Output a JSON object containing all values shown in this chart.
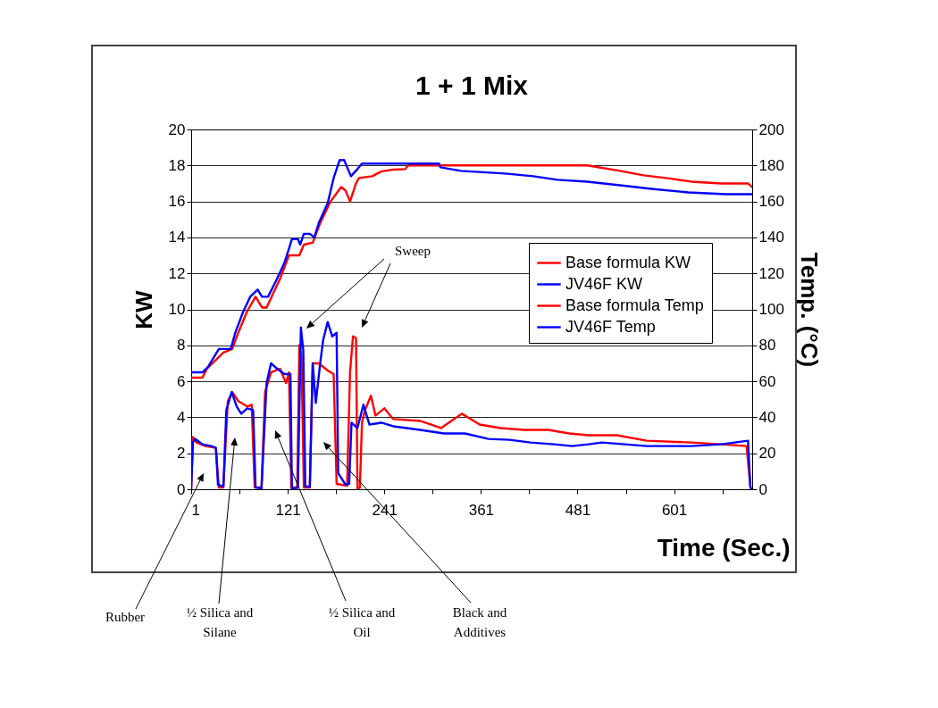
{
  "chart_data": {
    "type": "line",
    "title": "1 + 1 Mix",
    "xlabel": "Time (Sec.)",
    "ylabel": "KW",
    "y2label": "Temp. (°C)",
    "xlim": [
      1,
      698
    ],
    "xticks": [
      1,
      {
        "value": 61,
        "label": null
      },
      121,
      {
        "value": 181,
        "label": null
      },
      241,
      {
        "value": 301,
        "label": null
      },
      361,
      {
        "value": 421,
        "label": null
      },
      481,
      {
        "value": 541,
        "label": null
      },
      601,
      {
        "value": 661,
        "label": null
      }
    ],
    "ylim": [
      0,
      20
    ],
    "yticks": [
      0,
      2,
      4,
      6,
      8,
      10,
      12,
      14,
      16,
      18,
      20
    ],
    "y2lim": [
      0,
      200
    ],
    "y2ticks": [
      0,
      20,
      40,
      60,
      80,
      100,
      120,
      140,
      160,
      180,
      200
    ],
    "grid": "y",
    "legend": "top right",
    "series": [
      {
        "name": "Base formula KW",
        "color": "#ff0000",
        "x": [
          1,
          3.2,
          7.6,
          18.8,
          31.7,
          35.4,
          41,
          46.5,
          52,
          59.5,
          70.6,
          76.2,
          79.9,
          88.4,
          92.8,
          100.2,
          111.4,
          118.8,
          122.5,
          125.4,
          132.8,
          135.4,
          138,
          141,
          148.4,
          152,
          159.5,
          170.6,
          178,
          181.7,
          194.7,
          198.4,
          202,
          205.8,
          207.6,
          210.6,
          213.2,
          217,
          224.3,
          230,
          241,
          252,
          285.5,
          311.4,
          337.3,
          359.5,
          385.5,
          415,
          444.7,
          470.6,
          494.7,
          530,
          567,
          622.4,
          659.5,
          691,
          695.8,
          697.6
        ],
        "values": [
          0,
          2.9,
          2.6,
          2.4,
          2.3,
          0.1,
          0.1,
          4.9,
          5.4,
          4.9,
          4.6,
          4.7,
          0.1,
          0.1,
          5.4,
          6.5,
          6.7,
          5.9,
          6.5,
          0.1,
          0.1,
          8.0,
          7.4,
          0.1,
          0.1,
          7.0,
          7.0,
          6.6,
          6.4,
          0.3,
          0.2,
          6.5,
          8.5,
          8.4,
          0,
          0.1,
          3.7,
          4.4,
          5.2,
          4.1,
          4.5,
          3.9,
          3.8,
          3.4,
          4.2,
          3.6,
          3.4,
          3.3,
          3.3,
          3.1,
          3.0,
          3.0,
          2.7,
          2.6,
          2.5,
          2.4,
          0.1,
          0
        ]
      },
      {
        "name": "JV46F KW",
        "color": "#0000ff",
        "x": [
          1,
          3.2,
          5.8,
          15,
          26.2,
          31.7,
          34.3,
          41,
          44.7,
          51.3,
          57.6,
          63.2,
          70.6,
          78,
          81,
          88.4,
          94.7,
          100.2,
          107.7,
          117,
          124.3,
          126.2,
          133.6,
          137.3,
          140.3,
          142.8,
          148.4,
          152,
          155.8,
          161.3,
          165,
          170.6,
          176.2,
          181.7,
          183.6,
          192.8,
          197.3,
          200.2,
          207.6,
          215,
          222.4,
          237.3,
          252,
          285.5,
          315,
          341,
          370.6,
          396.6,
          422.5,
          452,
          474.3,
          494.7,
          511.3,
          567,
          622.4,
          659.5,
          692.8,
          695.8,
          697.6
        ],
        "values": [
          0,
          2.6,
          2.8,
          2.5,
          2.4,
          2.3,
          0.25,
          0.15,
          4.4,
          5.4,
          4.6,
          4.2,
          4.5,
          4.4,
          0.1,
          0.05,
          5.9,
          7.0,
          6.7,
          6.4,
          6.4,
          0,
          0.1,
          9.0,
          7.7,
          0.15,
          0.15,
          7.0,
          4.8,
          7.0,
          8.3,
          9.3,
          8.5,
          8.7,
          0.9,
          0.25,
          0.3,
          3.7,
          3.4,
          4.7,
          3.6,
          3.7,
          3.5,
          3.3,
          3.1,
          3.1,
          2.8,
          2.75,
          2.6,
          2.5,
          2.4,
          2.5,
          2.6,
          2.4,
          2.4,
          2.5,
          2.7,
          0.1,
          0
        ]
      },
      {
        "name": "Base formula Temp",
        "color": "#ff0000",
        "axis": "y2",
        "x": [
          1,
          15,
          20.6,
          41,
          52,
          59.5,
          70.6,
          81,
          89,
          94.7,
          111.4,
          122.5,
          135.4,
          141,
          152,
          161.3,
          174.3,
          187.3,
          192.8,
          198.4,
          205.8,
          209.5,
          226,
          237,
          252,
          267,
          270.6,
          493,
          533.6,
          563,
          591,
          622.4,
          659.5,
          692.8,
          698
        ],
        "values": [
          62,
          62,
          67,
          76,
          78,
          87,
          99,
          107,
          101,
          101,
          117,
          130,
          130,
          136,
          137,
          148,
          160,
          168,
          166,
          160,
          170,
          173,
          174,
          176.6,
          177.7,
          178,
          180,
          180,
          177,
          174.5,
          173,
          171,
          170,
          170,
          168
        ]
      },
      {
        "name": "JV46F Temp",
        "color": "#0000ff",
        "axis": "y2",
        "x": [
          1,
          15,
          22,
          35.4,
          50.2,
          55.8,
          65,
          74.3,
          83.6,
          89,
          96.5,
          107.7,
          117,
          126.2,
          133.6,
          136.5,
          141,
          148.4,
          154,
          159.5,
          170.6,
          178,
          185.4,
          191,
          199.5,
          207.6,
          213.2,
          309,
          310.6,
          335.5,
          391,
          426,
          456,
          493,
          533.6,
          572.4,
          618.7,
          665,
          698
        ],
        "values": [
          65,
          65,
          68,
          78,
          78,
          87,
          98,
          107,
          111,
          107,
          107,
          117,
          126,
          139,
          139,
          136,
          142,
          142,
          140,
          148,
          159,
          173,
          183,
          183,
          174,
          178,
          181,
          181,
          179,
          177,
          175.5,
          174,
          172,
          171,
          169,
          167,
          165,
          164,
          164
        ]
      }
    ],
    "annotations": [
      "Sweep",
      "Rubber",
      "½ Silica and Silane",
      "½ Silica and Oil",
      "Black and Additives"
    ]
  }
}
